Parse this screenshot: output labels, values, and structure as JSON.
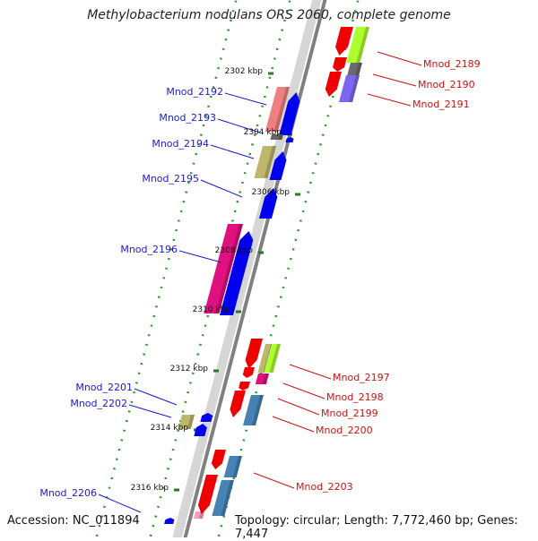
{
  "title": "Methylobacterium nodulans ORS 2060, complete genome",
  "accession": "Accession: NC_011894",
  "topology": "Topology: circular; Length: 7,772,460 bp; Genes: 7,447",
  "scale_unit": "kbp",
  "scale_ticks": [
    2302,
    2304,
    2306,
    2308,
    2310,
    2312,
    2314,
    2316
  ],
  "genes_forward": [
    "Mnod_2192",
    "Mnod_2193",
    "Mnod_2194",
    "Mnod_2195",
    "Mnod_2196",
    "Mnod_2201",
    "Mnod_2202",
    "Mnod_2206"
  ],
  "genes_reverse": [
    "Mnod_2189",
    "Mnod_2190",
    "Mnod_2191",
    "Mnod_2197",
    "Mnod_2198",
    "Mnod_2199",
    "Mnod_2200",
    "Mnod_2203"
  ],
  "colors": {
    "forward_label": "#1a1acc",
    "reverse_label": "#cc1111",
    "backbone": "#8a8a8a",
    "dots": "#2a9a2a",
    "forward_gene": "#0000ee",
    "reverse_gene": "#ee0000"
  }
}
